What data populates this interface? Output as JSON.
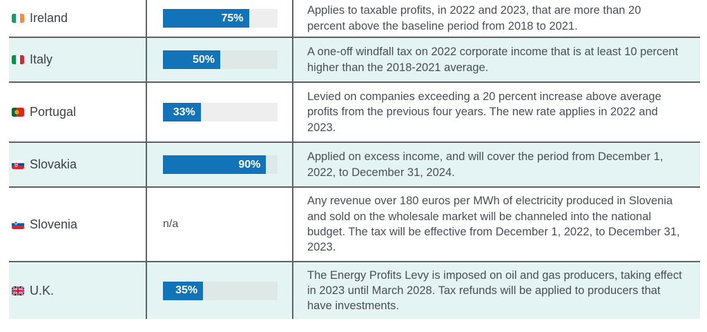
{
  "colors": {
    "bar_fill": "#1273b9",
    "row_tint": "#e4f4f3",
    "bar_track": "#eeeeee",
    "bar_track_on_tint": "#dde8e7",
    "border": "#5d6165",
    "text_primary": "#3c4146",
    "text_description": "#4a4f54"
  },
  "chart_data": {
    "type": "table",
    "layout_hints": {
      "embedded_bars": "horizontal",
      "bar_range_percent": [
        0,
        100
      ],
      "row_striping": "alternating white and pale teal"
    },
    "rows": [
      {
        "country": "Ireland",
        "flag": "ireland-flag",
        "rate_percent": 75,
        "rate_label": "75%",
        "description": "Applies to taxable profits, in 2022 and 2023, that are more than 20 percent above the baseline period from 2018 to 2021."
      },
      {
        "country": "Italy",
        "flag": "italy-flag",
        "rate_percent": 50,
        "rate_label": "50%",
        "description": "A one-off windfall tax on 2022 corporate income that is at least 10 percent higher than the 2018-2021 average."
      },
      {
        "country": "Portugal",
        "flag": "portugal-flag",
        "rate_percent": 33,
        "rate_label": "33%",
        "description": "Levied on companies exceeding a 20 percent increase above average profits from the previous four years. The new rate applies in 2022 and 2023."
      },
      {
        "country": "Slovakia",
        "flag": "slovakia-flag",
        "rate_percent": 90,
        "rate_label": "90%",
        "description": "Applied on excess income, and will cover the period from December 1, 2022, to December 31, 2024."
      },
      {
        "country": "Slovenia",
        "flag": "slovenia-flag",
        "rate_percent": null,
        "rate_label": "n/a",
        "description": "Any revenue over 180 euros per MWh of electricity produced in Slovenia and sold on the wholesale market will be channeled into the national budget. The tax will be effective from December 1, 2022, to December 31, 2023."
      },
      {
        "country": "U.K.",
        "flag": "uk-flag",
        "rate_percent": 35,
        "rate_label": "35%",
        "description": "The Energy Profits Levy is imposed on oil and gas producers, taking effect in 2023 until March 2028. Tax refunds will be applied to producers that have investments."
      }
    ]
  }
}
